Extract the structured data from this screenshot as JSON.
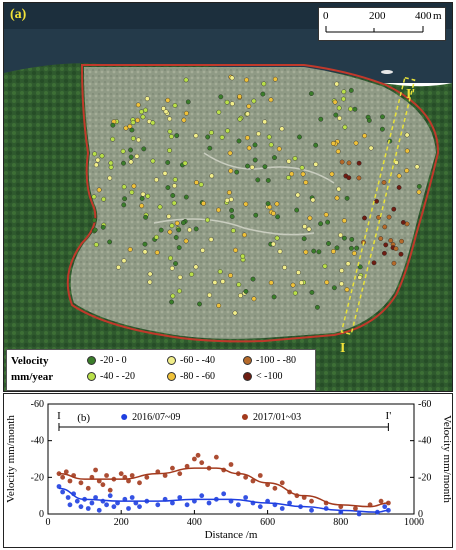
{
  "map": {
    "panel_label": "(a)",
    "scale_ticks": [
      "0",
      "200",
      "400"
    ],
    "scale_unit": "m",
    "profile_start": "I",
    "profile_end": "I'",
    "colors": {
      "boundary": "#c0392b",
      "profile_line": "#e8e23a"
    }
  },
  "legend": {
    "title_line1": "Velocity",
    "title_line2": "mm/year",
    "items": [
      {
        "label": "-20 - 0",
        "color": "#3a7d2a"
      },
      {
        "label": "-40 - -20",
        "color": "#b9e04a"
      },
      {
        "label": "-60 - -40",
        "color": "#f1ee8a"
      },
      {
        "label": "-80 - -60",
        "color": "#f0c23a"
      },
      {
        "label": "-100 - -80",
        "color": "#b56a2a"
      },
      {
        "label": "< -100",
        "color": "#6e1d12"
      }
    ]
  },
  "chart": {
    "panel_label": "(b)",
    "profile_start": "I",
    "profile_end": "I'",
    "xlabel": "Distance /m",
    "ylabel_left": "Velocity mm/month",
    "ylabel_right": "Velocity mm/month"
  },
  "chart_data": {
    "type": "scatter",
    "xlabel": "Distance /m",
    "ylabel": "Velocity mm/month",
    "xlim": [
      0,
      1000
    ],
    "ylim": [
      -60,
      0
    ],
    "x_ticks": [
      0,
      200,
      400,
      600,
      800,
      1000
    ],
    "y_ticks_left": [
      "-60",
      "-40",
      "-20",
      "0"
    ],
    "y_ticks_right": [
      "-60",
      "-40",
      "-20",
      "0"
    ],
    "legend_position": "top",
    "series": [
      {
        "name": "2016/07~09",
        "color": "#1f3fe0",
        "points": [
          [
            30,
            -15
          ],
          [
            40,
            -12
          ],
          [
            55,
            -9
          ],
          [
            60,
            -5
          ],
          [
            70,
            -11
          ],
          [
            80,
            -7
          ],
          [
            90,
            -4
          ],
          [
            100,
            -8
          ],
          [
            110,
            -3
          ],
          [
            120,
            -6
          ],
          [
            130,
            -9
          ],
          [
            140,
            -2
          ],
          [
            150,
            -7
          ],
          [
            160,
            -5
          ],
          [
            170,
            -10
          ],
          [
            180,
            -4
          ],
          [
            190,
            -6
          ],
          [
            210,
            -8
          ],
          [
            220,
            -3
          ],
          [
            230,
            -9
          ],
          [
            240,
            -6
          ],
          [
            250,
            -4
          ],
          [
            270,
            -7
          ],
          [
            300,
            -5
          ],
          [
            320,
            -8
          ],
          [
            340,
            -6
          ],
          [
            360,
            -9
          ],
          [
            380,
            -5
          ],
          [
            400,
            -7
          ],
          [
            420,
            -10
          ],
          [
            440,
            -6
          ],
          [
            460,
            -8
          ],
          [
            480,
            -11
          ],
          [
            500,
            -7
          ],
          [
            520,
            -5
          ],
          [
            540,
            -9
          ],
          [
            560,
            -6
          ],
          [
            580,
            -4
          ],
          [
            600,
            -7
          ],
          [
            620,
            -5
          ],
          [
            640,
            -3
          ],
          [
            660,
            -6
          ],
          [
            690,
            -4
          ],
          [
            720,
            -2
          ],
          [
            760,
            -3
          ],
          [
            800,
            -1
          ],
          [
            850,
            0
          ],
          [
            900,
            -1
          ],
          [
            920,
            -4
          ],
          [
            930,
            -2
          ]
        ],
        "trend": [
          [
            30,
            -14
          ],
          [
            100,
            -8
          ],
          [
            200,
            -7
          ],
          [
            300,
            -7
          ],
          [
            400,
            -8
          ],
          [
            500,
            -8
          ],
          [
            600,
            -6
          ],
          [
            700,
            -4
          ],
          [
            800,
            -2
          ],
          [
            900,
            -1
          ],
          [
            930,
            -2
          ]
        ]
      },
      {
        "name": "2017/01~03",
        "color": "#a33a1d",
        "points": [
          [
            30,
            -22
          ],
          [
            40,
            -20
          ],
          [
            50,
            -23
          ],
          [
            60,
            -18
          ],
          [
            70,
            -21
          ],
          [
            90,
            -17
          ],
          [
            110,
            -14
          ],
          [
            120,
            -20
          ],
          [
            130,
            -24
          ],
          [
            140,
            -18
          ],
          [
            150,
            -16
          ],
          [
            160,
            -21
          ],
          [
            170,
            -13
          ],
          [
            180,
            -19
          ],
          [
            200,
            -22
          ],
          [
            210,
            -20
          ],
          [
            220,
            -18
          ],
          [
            230,
            -21
          ],
          [
            250,
            -17
          ],
          [
            270,
            -20
          ],
          [
            300,
            -23
          ],
          [
            320,
            -21
          ],
          [
            340,
            -25
          ],
          [
            360,
            -22
          ],
          [
            380,
            -26
          ],
          [
            400,
            -30
          ],
          [
            410,
            -32
          ],
          [
            420,
            -28
          ],
          [
            440,
            -25
          ],
          [
            460,
            -31
          ],
          [
            480,
            -24
          ],
          [
            500,
            -27
          ],
          [
            520,
            -22
          ],
          [
            540,
            -20
          ],
          [
            560,
            -18
          ],
          [
            580,
            -21
          ],
          [
            600,
            -16
          ],
          [
            620,
            -14
          ],
          [
            640,
            -17
          ],
          [
            660,
            -12
          ],
          [
            680,
            -10
          ],
          [
            700,
            -9
          ],
          [
            720,
            -7
          ],
          [
            760,
            -6
          ],
          [
            800,
            -4
          ],
          [
            840,
            -3
          ],
          [
            880,
            -5
          ],
          [
            910,
            -7
          ],
          [
            930,
            -6
          ]
        ],
        "trend": [
          [
            30,
            -22
          ],
          [
            100,
            -19
          ],
          [
            200,
            -19
          ],
          [
            300,
            -22
          ],
          [
            400,
            -25
          ],
          [
            460,
            -25
          ],
          [
            520,
            -22
          ],
          [
            600,
            -17
          ],
          [
            700,
            -10
          ],
          [
            800,
            -5
          ],
          [
            880,
            -4
          ],
          [
            930,
            -6
          ]
        ]
      }
    ]
  }
}
